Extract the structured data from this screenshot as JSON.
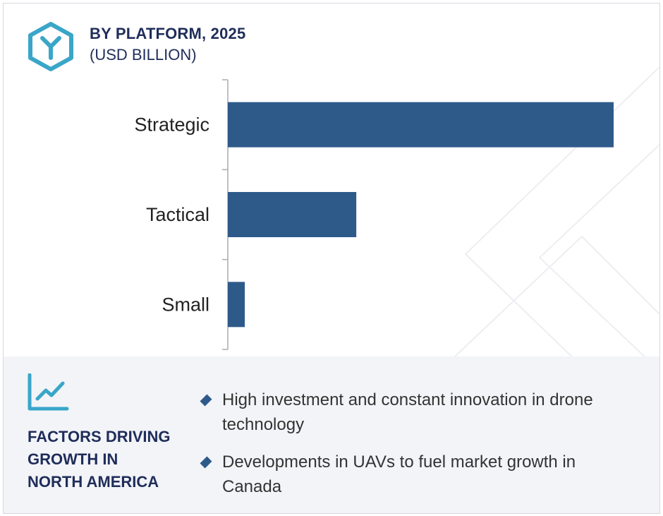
{
  "header": {
    "title": "BY PLATFORM, 2025",
    "subtitle": "(USD BILLION)"
  },
  "colors": {
    "bar": "#2e5a8a",
    "heading": "#1f2d5a",
    "logo": "#3aa6c8",
    "panel_bg": "#f3f4f8"
  },
  "icons": {
    "logo": "hexagon-y-logo-icon",
    "factors": "line-chart-growth-icon",
    "bullet": "diamond-bullet-icon"
  },
  "chart_data": {
    "type": "bar",
    "orientation": "horizontal",
    "title": "BY PLATFORM, 2025",
    "subtitle": "(USD BILLION)",
    "categories": [
      "Strategic",
      "Tactical",
      "Small"
    ],
    "values": [
      100,
      33.3,
      4.4
    ],
    "value_note": "relative lengths, no value axis shown",
    "xlim": [
      0,
      100
    ],
    "grid": false,
    "legend": "none"
  },
  "factors": {
    "heading_lines": [
      "FACTORS DRIVING",
      "GROWTH IN",
      "NORTH AMERICA"
    ],
    "items": [
      "High investment and constant innovation in drone technology",
      "Developments in UAVs to fuel market growth in Canada"
    ]
  }
}
